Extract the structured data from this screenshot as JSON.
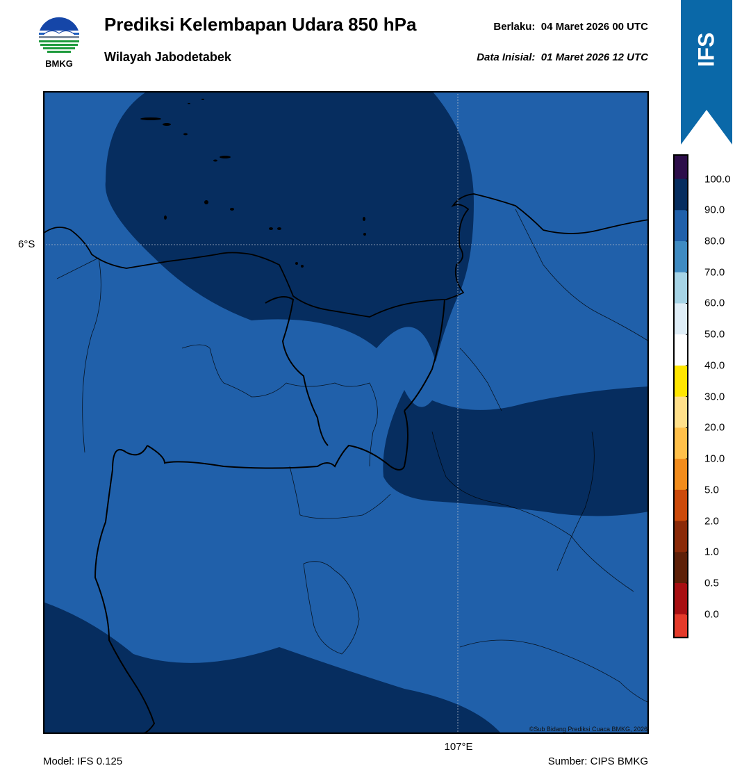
{
  "header": {
    "logo_text": "BMKG",
    "title": "Prediksi Kelembapan Udara 850 hPa",
    "subtitle": "Wilayah Jabodetabek",
    "valid_label": "Berlaku:",
    "valid_value": "04 Maret 2026 00 UTC",
    "init_label": "Data Inisial:",
    "init_value": "01 Maret 2026 12 UTC"
  },
  "banner": {
    "text": "IFS",
    "color": "#0a68a8"
  },
  "map": {
    "lat_label": "6°S",
    "lon_label": "107°E",
    "copyright": "©Sub Bidang Prediksi Cuaca BMKG, 2026",
    "fill_levels": {
      "80-90": "#2060aa",
      "90-100": "#062d5f"
    }
  },
  "footer": {
    "model": "Model: IFS 0.125",
    "source": "Sumber: CIPS BMKG"
  },
  "colorbar": {
    "labels": [
      "100.0",
      "90.0",
      "80.0",
      "70.0",
      "60.0",
      "50.0",
      "40.0",
      "30.0",
      "20.0",
      "10.0",
      "5.0",
      "2.0",
      "1.0",
      "0.5",
      "0.0"
    ],
    "colors": [
      "#2d0e4a",
      "#062d5f",
      "#2060aa",
      "#3f8bc2",
      "#a6d4e6",
      "#dfeef7",
      "#ffffff",
      "#ffe600",
      "#ffe08a",
      "#ffc04a",
      "#f28c1c",
      "#cc4a0a",
      "#8b2a08",
      "#5e2008",
      "#a80f12",
      "#e43a2a"
    ]
  }
}
